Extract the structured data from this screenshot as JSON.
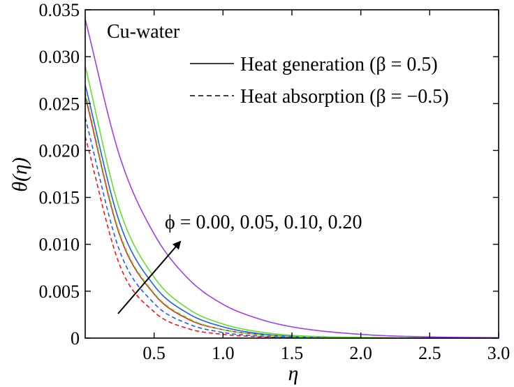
{
  "chart_data": {
    "type": "line",
    "title": "",
    "xlabel": "η",
    "ylabel": "θ(η)",
    "xlim": [
      0,
      3.0
    ],
    "ylim": [
      0,
      0.035
    ],
    "xticks": [
      0.5,
      1.0,
      1.5,
      2.0,
      2.5,
      3.0
    ],
    "xtick_labels": [
      "0.5",
      "1.0",
      "1.5",
      "2.0",
      "2.5",
      "3.0"
    ],
    "yticks": [
      0,
      0.005,
      0.01,
      0.015,
      0.02,
      0.025,
      0.03,
      0.035
    ],
    "ytick_labels": [
      "0",
      "0.005",
      "0.010",
      "0.015",
      "0.020",
      "0.025",
      "0.030",
      "0.035"
    ],
    "grid": false,
    "legend_position": "top-right",
    "annotation_label": "Cu-water",
    "legend": [
      {
        "label": "Heat generation (β = 0.5)",
        "style": "solid"
      },
      {
        "label": "Heat absorption (β = −0.5)",
        "style": "dashed"
      }
    ],
    "arrow_label": "ϕ = 0.00, 0.05, 0.10, 0.20",
    "x": [
      0.0,
      0.25,
      0.5,
      0.75,
      1.0,
      1.25,
      1.5,
      2.0,
      2.5,
      3.0
    ],
    "series": [
      {
        "phi": "0.00",
        "beta": "0.5",
        "style": "solid",
        "color": "#e41a1c",
        "values": [
          0.0258,
          0.011,
          0.0047,
          0.002,
          0.0009,
          0.0004,
          0.0002,
          3e-05,
          0.0,
          0.0
        ]
      },
      {
        "phi": "0.05",
        "beta": "0.5",
        "style": "solid",
        "color": "#1f5fe0",
        "values": [
          0.027,
          0.0123,
          0.0056,
          0.0026,
          0.0012,
          0.0005,
          0.0002,
          5e-05,
          0.0,
          0.0
        ]
      },
      {
        "phi": "0.10",
        "beta": "0.5",
        "style": "solid",
        "color": "#66dd33",
        "values": [
          0.029,
          0.0137,
          0.0065,
          0.0031,
          0.0015,
          0.0007,
          0.0003,
          8e-05,
          2e-05,
          0.0
        ]
      },
      {
        "phi": "0.20",
        "beta": "0.5",
        "style": "solid",
        "color": "#a040e0",
        "values": [
          0.034,
          0.0194,
          0.0111,
          0.0063,
          0.0036,
          0.0021,
          0.0012,
          0.0004,
          0.00013,
          4e-05
        ]
      },
      {
        "phi": "0.00",
        "beta": "-0.5",
        "style": "dashed",
        "color": "#e41a1c",
        "values": [
          0.0215,
          0.0078,
          0.0028,
          0.001,
          0.0004,
          0.00015,
          5e-05,
          0.0,
          0.0,
          0.0
        ]
      },
      {
        "phi": "0.05",
        "beta": "-0.5",
        "style": "dashed",
        "color": "#1f5fe0",
        "values": [
          0.0235,
          0.0093,
          0.0037,
          0.0015,
          0.0006,
          0.00023,
          9e-05,
          0.0,
          0.0,
          0.0
        ]
      },
      {
        "phi": "0.10",
        "beta": "-0.5",
        "style": "dashed",
        "color": "#66dd33",
        "values": [
          0.0262,
          0.0112,
          0.0048,
          0.0021,
          0.0009,
          0.0004,
          0.00016,
          3e-05,
          0.0,
          0.0
        ]
      }
    ]
  }
}
